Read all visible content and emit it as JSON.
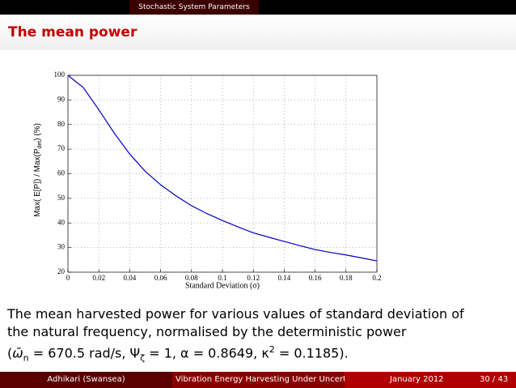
{
  "header": {
    "section": "Stochastic System Parameters",
    "title": "The mean power"
  },
  "chart_data": {
    "type": "line",
    "x": [
      0,
      0.01,
      0.02,
      0.03,
      0.04,
      0.05,
      0.06,
      0.07,
      0.08,
      0.09,
      0.1,
      0.11,
      0.12,
      0.13,
      0.14,
      0.15,
      0.16,
      0.17,
      0.18,
      0.19,
      0.2
    ],
    "values": [
      100,
      95,
      86,
      76.5,
      68,
      61,
      55.5,
      51,
      47,
      43.8,
      41,
      38.4,
      36,
      34.2,
      32.5,
      30.8,
      29.2,
      28,
      27,
      25.8,
      24.6
    ],
    "color": "#0000c0",
    "xlim": [
      0,
      0.2
    ],
    "xticks": [
      0,
      0.02,
      0.04,
      0.06,
      0.08,
      0.1,
      0.12,
      0.14,
      0.16,
      0.18,
      0.2
    ],
    "ylim": [
      20,
      100
    ],
    "yticks": [
      20,
      30,
      40,
      50,
      60,
      70,
      80,
      90,
      100
    ],
    "grid": true,
    "xlabel": "Standard Deviation (σ)",
    "ylabel": {
      "before": "Max( E[P]) / Max(P",
      "sub": "det",
      "after": ") (%)"
    }
  },
  "body": {
    "line1": "The mean harvested power for various values of standard deviation of",
    "line2": "the natural frequency, normalised by the deterministic power",
    "line3": [
      "(",
      "ω̄",
      "n",
      " = 670.5 rad/s, Ψ",
      "ζ",
      " = 1, α = 0.8649, κ",
      "2",
      " = 0.1185)."
    ]
  },
  "footer": {
    "author": "Adhikari  (Swansea)",
    "talk": "Vibration Energy Harvesting Under Uncertaint",
    "date": "January 2012",
    "page": "30 / 43"
  }
}
